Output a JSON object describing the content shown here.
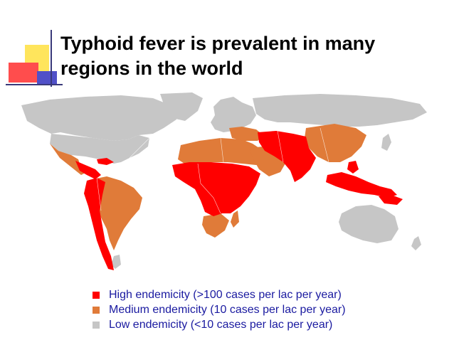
{
  "title": "Typhoid fever is prevalent in many regions in the world",
  "colors": {
    "high": "#ff0000",
    "medium": "#e07b39",
    "low": "#c6c6c6",
    "text_blue": "#1a1aa0"
  },
  "legend": [
    {
      "label": "High endemicity (>100 cases per lac per year)",
      "swatch": "high"
    },
    {
      "label": "Medium endemicity (10 cases per lac per year)",
      "swatch": "medium"
    },
    {
      "label": "Low endemicity (<10 cases per lac per year)",
      "swatch": "low"
    }
  ]
}
